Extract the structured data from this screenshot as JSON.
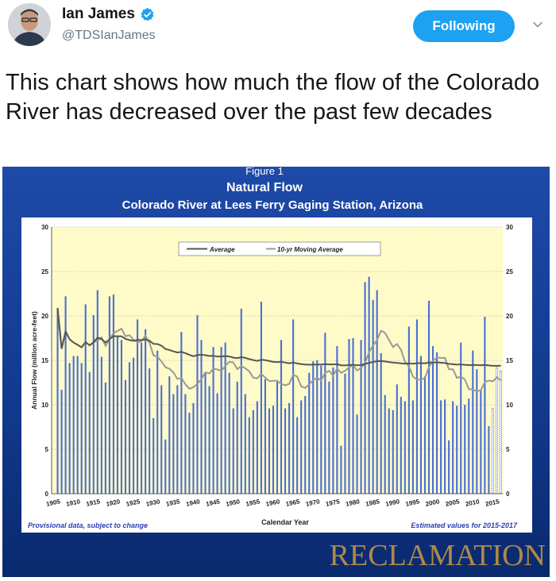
{
  "tweet": {
    "user_name": "Ian James",
    "handle": "@TDSIanJames",
    "follow_button": "Following",
    "text": "This chart shows how much the flow of the Colorado River has decreased over the past few decades"
  },
  "colors": {
    "follow_bg": "#1da1f2",
    "verified": "#1da1f2",
    "chart_frame": "#1a3a8c",
    "plot_bg": "#fffbc8",
    "bar": "#4a6fd6",
    "average_line": "#555555",
    "moving_average_line": "#999999"
  },
  "icons": {
    "verified": "verified-badge-icon",
    "chevron": "chevron-down-icon"
  },
  "chart_data": {
    "type": "bar",
    "figure_label": "Figure 1",
    "title": "Natural Flow",
    "subtitle": "Colorado River at Lees Ferry Gaging Station, Arizona",
    "xlabel": "Calendar Year",
    "ylabel": "Annual Flow (million acre-feet)",
    "ylim": [
      0,
      30
    ],
    "yticks": [
      0,
      5,
      10,
      15,
      20,
      25,
      30
    ],
    "xticks": [
      1905,
      1910,
      1915,
      1920,
      1925,
      1930,
      1935,
      1940,
      1945,
      1950,
      1955,
      1960,
      1965,
      1970,
      1975,
      1980,
      1985,
      1990,
      1995,
      2000,
      2005,
      2010,
      2015
    ],
    "legend": [
      "Average",
      "10-yr Moving Average"
    ],
    "legend_position": "top-center",
    "footnote_left": "Provisional data, subject to change",
    "footnote_right": "Estimated values for 2015-2017",
    "brand": "RECLAMATION",
    "grid": true,
    "estimated_years": [
      2015,
      2016,
      2017
    ],
    "x": [
      1906,
      1907,
      1908,
      1909,
      1910,
      1911,
      1912,
      1913,
      1914,
      1915,
      1916,
      1917,
      1918,
      1919,
      1920,
      1921,
      1922,
      1923,
      1924,
      1925,
      1926,
      1927,
      1928,
      1929,
      1930,
      1931,
      1932,
      1933,
      1934,
      1935,
      1936,
      1937,
      1938,
      1939,
      1940,
      1941,
      1942,
      1943,
      1944,
      1945,
      1946,
      1947,
      1948,
      1949,
      1950,
      1951,
      1952,
      1953,
      1954,
      1955,
      1956,
      1957,
      1958,
      1959,
      1960,
      1961,
      1962,
      1963,
      1964,
      1965,
      1966,
      1967,
      1968,
      1969,
      1970,
      1971,
      1972,
      1973,
      1974,
      1975,
      1976,
      1977,
      1978,
      1979,
      1980,
      1981,
      1982,
      1983,
      1984,
      1985,
      1986,
      1987,
      1988,
      1989,
      1990,
      1991,
      1992,
      1993,
      1994,
      1995,
      1996,
      1997,
      1998,
      1999,
      2000,
      2001,
      2002,
      2003,
      2004,
      2005,
      2006,
      2007,
      2008,
      2009,
      2010,
      2011,
      2012,
      2013,
      2014,
      2015,
      2016,
      2017
    ],
    "values": [
      20.9,
      11.7,
      22.2,
      14.7,
      15.5,
      15.5,
      14.7,
      21.3,
      13.7,
      20.1,
      22.9,
      15.4,
      12.5,
      22.2,
      22.4,
      17.8,
      17.3,
      12.8,
      14.8,
      15.3,
      19.6,
      17.0,
      18.5,
      14.1,
      8.5,
      16.1,
      12.2,
      6.1,
      13.2,
      11.2,
      12.2,
      18.2,
      11.2,
      9.1,
      10.2,
      20.1,
      17.3,
      13.7,
      12.1,
      16.5,
      11.3,
      16.5,
      17.0,
      13.6,
      9.6,
      12.6,
      20.8,
      11.2,
      8.6,
      9.4,
      10.4,
      21.6,
      12.9,
      9.6,
      9.9,
      12.6,
      17.3,
      9.6,
      10.2,
      19.6,
      8.6,
      10.5,
      11.0,
      13.6,
      14.9,
      15.0,
      14.4,
      18.1,
      12.6,
      14.2,
      16.6,
      5.4,
      13.5,
      17.4,
      17.5,
      8.9,
      17.3,
      23.8,
      24.4,
      21.8,
      22.9,
      15.8,
      11.1,
      9.6,
      9.4,
      12.3,
      10.9,
      10.4,
      18.8,
      10.5,
      19.6,
      15.5,
      13.2,
      21.7,
      16.6,
      15.9,
      10.5,
      10.6,
      6.0,
      10.4,
      9.9,
      17.0,
      10.0,
      10.7,
      16.1,
      14.0,
      11.6,
      19.9,
      7.6,
      9.6,
      14.2,
      13.8
    ]
  }
}
